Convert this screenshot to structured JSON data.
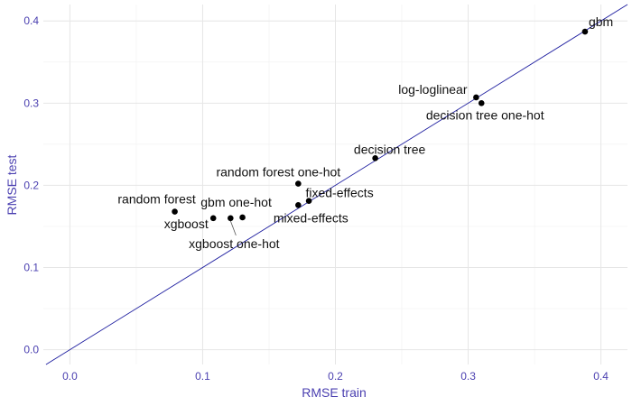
{
  "chart_data": {
    "type": "scatter",
    "title": "",
    "xlabel": "RMSE train",
    "ylabel": "RMSE test",
    "xlim": [
      -0.02,
      0.42
    ],
    "ylim": [
      -0.018,
      0.42
    ],
    "x_ticks": [
      0.0,
      0.1,
      0.2,
      0.3,
      0.4
    ],
    "x_tick_labels": [
      "0.0",
      "0.1",
      "0.2",
      "0.3",
      "0.4"
    ],
    "y_ticks": [
      0.0,
      0.1,
      0.2,
      0.3,
      0.4
    ],
    "y_tick_labels": [
      "0.0",
      "0.1",
      "0.2",
      "0.3",
      "0.4"
    ],
    "reference_line": {
      "slope": 1,
      "intercept": 0,
      "color": "#1f1fa0"
    },
    "point_color": "#000000",
    "grid": true,
    "points": [
      {
        "label": "gbm",
        "x": 0.388,
        "y": 0.387
      },
      {
        "label": "log-loglinear",
        "x": 0.306,
        "y": 0.307
      },
      {
        "label": "decision tree one-hot",
        "x": 0.31,
        "y": 0.3
      },
      {
        "label": "decision tree",
        "x": 0.23,
        "y": 0.233
      },
      {
        "label": "random forest one-hot",
        "x": 0.172,
        "y": 0.202
      },
      {
        "label": "fixed-effects",
        "x": 0.18,
        "y": 0.181
      },
      {
        "label": "mixed-effects",
        "x": 0.172,
        "y": 0.176
      },
      {
        "label": "random forest",
        "x": 0.079,
        "y": 0.168
      },
      {
        "label": "gbm one-hot",
        "x": 0.13,
        "y": 0.161
      },
      {
        "label": "xgboost one-hot",
        "x": 0.121,
        "y": 0.16
      },
      {
        "label": "xgboost",
        "x": 0.108,
        "y": 0.16
      }
    ]
  }
}
